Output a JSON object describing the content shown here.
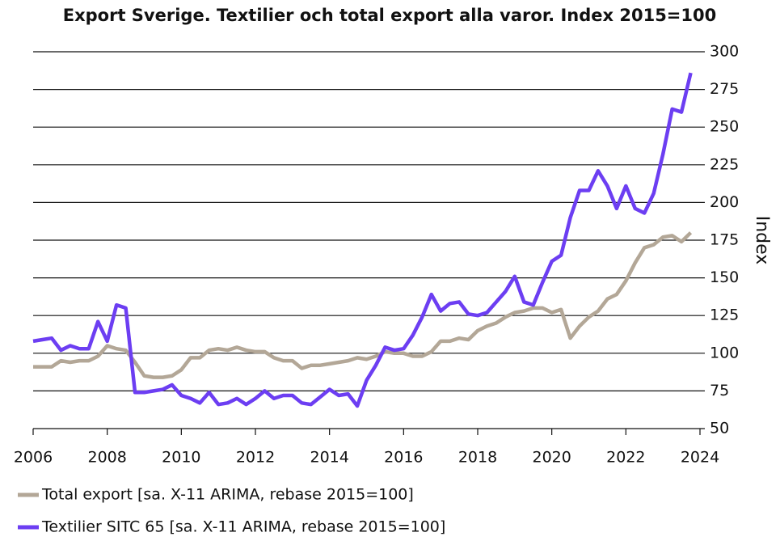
{
  "chart_data": {
    "type": "line",
    "title": "Export Sverige. Textilier och total export alla varor. Index 2015=100",
    "y_label": "Index",
    "x": [
      2006,
      2006.25,
      2006.5,
      2006.75,
      2007,
      2007.25,
      2007.5,
      2007.75,
      2008,
      2008.25,
      2008.5,
      2008.75,
      2009,
      2009.25,
      2009.5,
      2009.75,
      2010,
      2010.25,
      2010.5,
      2010.75,
      2011,
      2011.25,
      2011.5,
      2011.75,
      2012,
      2012.25,
      2012.5,
      2012.75,
      2013,
      2013.25,
      2013.5,
      2013.75,
      2014,
      2014.25,
      2014.5,
      2014.75,
      2015,
      2015.25,
      2015.5,
      2015.75,
      2016,
      2016.25,
      2016.5,
      2016.75,
      2017,
      2017.25,
      2017.5,
      2017.75,
      2018,
      2018.25,
      2018.5,
      2018.75,
      2019,
      2019.25,
      2019.5,
      2019.75,
      2020,
      2020.25,
      2020.5,
      2020.75,
      2021,
      2021.25,
      2021.5,
      2021.75,
      2022,
      2022.25,
      2022.5,
      2022.75,
      2023,
      2023.25,
      2023.5,
      2023.75
    ],
    "series": [
      {
        "name": "Total export [sa. X-11 ARIMA, rebase 2015=100]",
        "color": "#b3a797",
        "values": [
          91,
          91,
          91,
          95,
          94,
          95,
          95,
          98,
          105,
          103,
          102,
          94,
          85,
          84,
          84,
          85,
          89,
          97,
          97,
          102,
          103,
          102,
          104,
          102,
          101,
          101,
          97,
          95,
          95,
          90,
          92,
          92,
          93,
          94,
          95,
          97,
          96,
          98,
          101,
          100,
          100,
          98,
          98,
          101,
          108,
          108,
          110,
          109,
          115,
          118,
          120,
          124,
          127,
          128,
          130,
          130,
          127,
          129,
          110,
          118,
          124,
          128,
          136,
          139,
          148,
          160,
          170,
          172,
          177,
          178,
          174,
          180
        ]
      },
      {
        "name": "Textilier SITC 65 [sa. X-11 ARIMA, rebase 2015=100]",
        "color": "#6c3ef2",
        "values": [
          108,
          109,
          110,
          102,
          105,
          103,
          103,
          121,
          108,
          132,
          130,
          74,
          74,
          75,
          76,
          79,
          72,
          70,
          67,
          74,
          66,
          67,
          70,
          66,
          70,
          75,
          70,
          72,
          72,
          67,
          66,
          71,
          76,
          72,
          73,
          65,
          82,
          92,
          104,
          102,
          103,
          112,
          124,
          139,
          128,
          133,
          134,
          126,
          125,
          127,
          134,
          141,
          151,
          134,
          132,
          147,
          161,
          165,
          190,
          208,
          208,
          221,
          211,
          196,
          211,
          196,
          193,
          206,
          232,
          262,
          260,
          286
        ]
      }
    ],
    "xlim": [
      2006,
      2024
    ],
    "xticks": [
      2006,
      2008,
      2010,
      2012,
      2014,
      2016,
      2018,
      2020,
      2022,
      2024
    ],
    "ylim": [
      50,
      300
    ],
    "yticks": [
      50,
      75,
      100,
      125,
      150,
      175,
      200,
      225,
      250,
      275,
      300
    ],
    "grid": true,
    "legend": "bottom"
  }
}
